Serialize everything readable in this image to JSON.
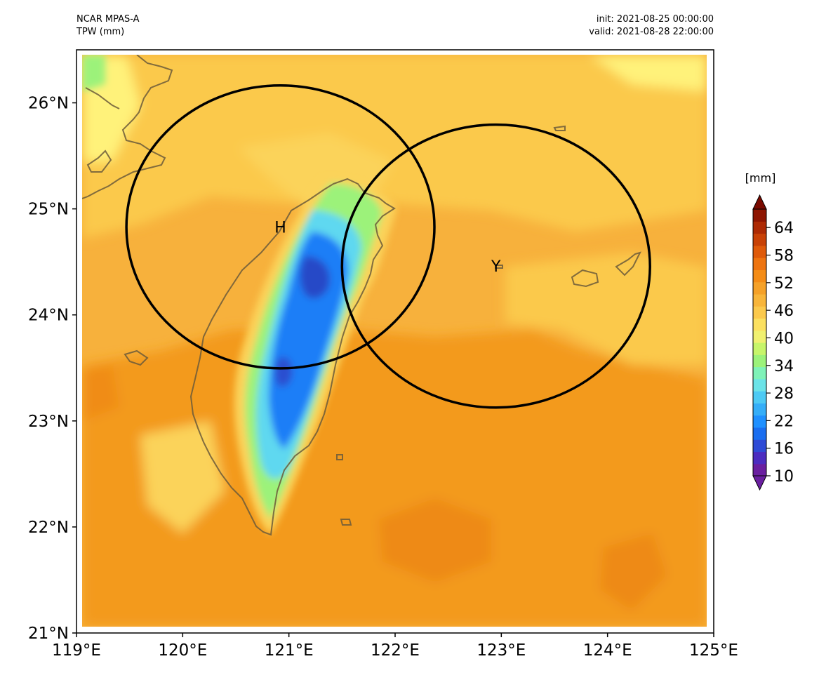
{
  "header": {
    "model": "NCAR MPAS-A",
    "variable": "TPW (mm)",
    "init": "init: 2021-08-25 00:00:00",
    "valid": "valid: 2021-08-28 22:00:00"
  },
  "map": {
    "lon_range": [
      119,
      125
    ],
    "lat_range": [
      21,
      26.5
    ],
    "lon_ticks": [
      "119°E",
      "120°E",
      "121°E",
      "122°E",
      "123°E",
      "124°E",
      "125°E"
    ],
    "lat_ticks": [
      "21°N",
      "22°N",
      "23°N",
      "24°N",
      "25°N",
      "26°N"
    ],
    "coastline_color": "#6b5a3a",
    "circles": [
      {
        "label": "H",
        "lon": 120.92,
        "lat": 24.83,
        "radius_deg": 1.45
      },
      {
        "label": "Y",
        "lon": 122.95,
        "lat": 24.46,
        "radius_deg": 1.45
      }
    ],
    "colors": {
      "background": "#f7b13c",
      "moist": "#f39a1c",
      "dry": "#fbd35a",
      "very_dry": "#fff27a",
      "green": "#7fe873",
      "cyan": "#5fd8f0",
      "blue": "#1f7ef7",
      "deep_blue": "#2748c7"
    }
  },
  "colorbar": {
    "unit": "[mm]",
    "ticks": [
      "10",
      "16",
      "22",
      "28",
      "34",
      "40",
      "46",
      "52",
      "58",
      "64"
    ],
    "min": 10,
    "max": 68,
    "colors": [
      "#6a1fa0",
      "#4c2cc0",
      "#2f4bd6",
      "#1a6ef0",
      "#1f90ff",
      "#35aef8",
      "#4dcaf4",
      "#6be3e8",
      "#7ff2b8",
      "#9cf27a",
      "#c7f56a",
      "#f0f070",
      "#fbe060",
      "#fbc94c",
      "#f8b53a",
      "#f5a128",
      "#f48c16",
      "#ee7410",
      "#df5a0a",
      "#c84106",
      "#ad2a04",
      "#8e1602"
    ]
  }
}
